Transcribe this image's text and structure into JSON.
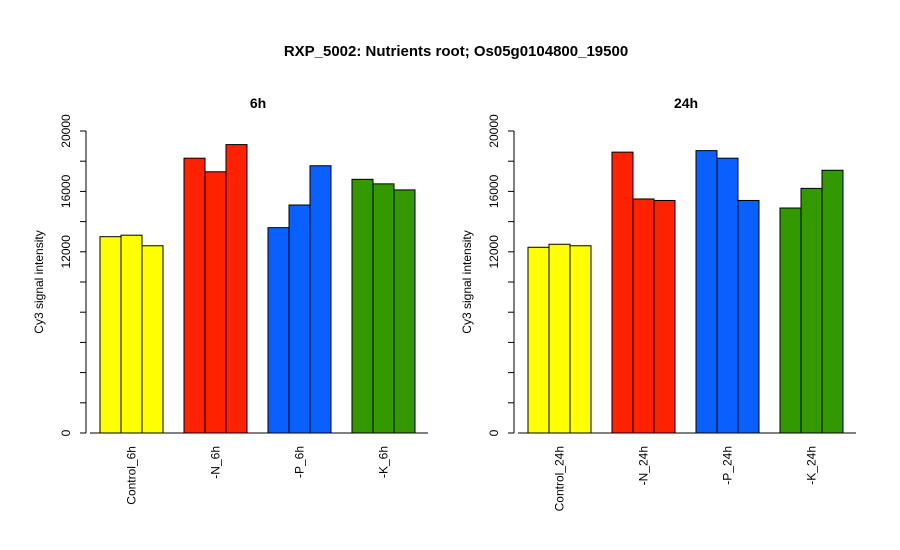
{
  "figure": {
    "title": "RXP_5002: Nutrients root; Os05g0104800_19500"
  },
  "chart_data": [
    {
      "type": "bar",
      "title": "6h",
      "ylabel": "Cy3 signal intensity",
      "xlabel": "",
      "ylim": [
        0,
        20000
      ],
      "yticks": [
        0,
        12000,
        16000,
        20000
      ],
      "grid": false,
      "legend": "none",
      "groups": [
        {
          "label": "Control_6h",
          "color": "#ffff00",
          "values": [
            13000,
            13100,
            12400
          ]
        },
        {
          "label": "-N_6h",
          "color": "#ff2200",
          "values": [
            18200,
            17300,
            19100
          ]
        },
        {
          "label": "-P_6h",
          "color": "#0a5fff",
          "values": [
            13600,
            15100,
            17700
          ]
        },
        {
          "label": "-K_6h",
          "color": "#339900",
          "values": [
            16800,
            16500,
            16100
          ]
        }
      ]
    },
    {
      "type": "bar",
      "title": "24h",
      "ylabel": "Cy3 signal intensity",
      "xlabel": "",
      "ylim": [
        0,
        20000
      ],
      "yticks": [
        0,
        12000,
        16000,
        20000
      ],
      "grid": false,
      "legend": "none",
      "groups": [
        {
          "label": "Control_24h",
          "color": "#ffff00",
          "values": [
            12300,
            12500,
            12400
          ]
        },
        {
          "label": "-N_24h",
          "color": "#ff2200",
          "values": [
            18600,
            15500,
            15400
          ]
        },
        {
          "label": "-P_24h",
          "color": "#0a5fff",
          "values": [
            18700,
            18200,
            15400
          ]
        },
        {
          "label": "-K_24h",
          "color": "#339900",
          "values": [
            14900,
            16200,
            17400
          ]
        }
      ]
    }
  ]
}
